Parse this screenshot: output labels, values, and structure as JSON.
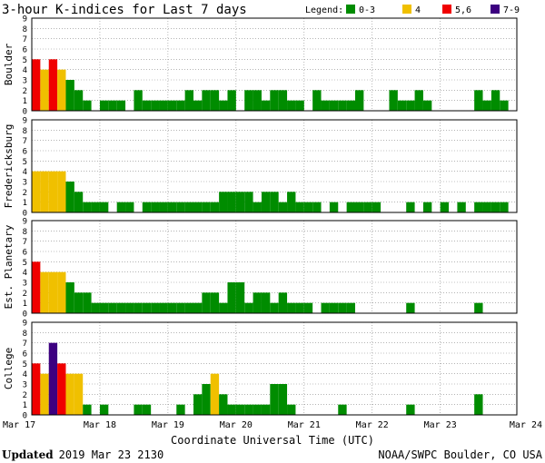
{
  "chart_data": {
    "type": "bar",
    "title": "3-hour K-indices for Last 7 days",
    "legend": {
      "label": "Legend:",
      "placement": "top-right",
      "entries": [
        {
          "label": "0-3",
          "color": "#008c00"
        },
        {
          "label": "4",
          "color": "#f0c000"
        },
        {
          "label": "5,6",
          "color": "#f00000"
        },
        {
          "label": "7-9",
          "color": "#3c0080"
        }
      ]
    },
    "xlabel": "Coordinate Universal Time (UTC)",
    "x_ticks": [
      "Mar 17",
      "Mar 18",
      "Mar 19",
      "Mar 20",
      "Mar 21",
      "Mar 22",
      "Mar 23",
      "Mar 24"
    ],
    "y_ticks": [
      "0",
      "1",
      "2",
      "3",
      "4",
      "5",
      "6",
      "7",
      "8",
      "9"
    ],
    "ylim": [
      0,
      9
    ],
    "bins_per_day": 8,
    "days": 7,
    "grid": true,
    "panels": [
      {
        "name": "Boulder",
        "values": [
          5,
          4,
          5,
          4,
          3,
          2,
          1,
          0,
          1,
          1,
          1,
          0,
          2,
          1,
          1,
          1,
          1,
          1,
          2,
          1,
          2,
          2,
          1,
          2,
          0,
          2,
          2,
          1,
          2,
          2,
          1,
          1,
          0,
          2,
          1,
          1,
          1,
          1,
          2,
          0,
          0,
          0,
          2,
          1,
          1,
          2,
          1,
          0,
          0,
          0,
          0,
          0,
          2,
          1,
          2,
          1,
          0
        ]
      },
      {
        "name": "Fredericksburg",
        "values": [
          4,
          4,
          4,
          4,
          3,
          2,
          1,
          1,
          1,
          0,
          1,
          1,
          0,
          1,
          1,
          1,
          1,
          1,
          1,
          1,
          1,
          1,
          2,
          2,
          2,
          2,
          1,
          2,
          2,
          1,
          2,
          1,
          1,
          1,
          0,
          1,
          0,
          1,
          1,
          1,
          1,
          0,
          0,
          0,
          1,
          0,
          1,
          0,
          1,
          0,
          1,
          0,
          1,
          1,
          1,
          1,
          0
        ]
      },
      {
        "name": "Est. Planetary",
        "values": [
          5,
          4,
          4,
          4,
          3,
          2,
          2,
          1,
          1,
          1,
          1,
          1,
          1,
          1,
          1,
          1,
          1,
          1,
          1,
          1,
          2,
          2,
          1,
          3,
          3,
          1,
          2,
          2,
          1,
          2,
          1,
          1,
          1,
          0,
          1,
          1,
          1,
          1,
          0,
          0,
          0,
          0,
          0,
          0,
          1,
          0,
          0,
          0,
          0,
          0,
          0,
          0,
          1,
          0,
          0,
          0,
          0
        ]
      },
      {
        "name": "College",
        "values": [
          5,
          4,
          7,
          5,
          4,
          4,
          1,
          0,
          1,
          0,
          0,
          0,
          1,
          1,
          0,
          0,
          0,
          1,
          0,
          2,
          3,
          4,
          2,
          1,
          1,
          1,
          1,
          1,
          3,
          3,
          1,
          0,
          0,
          0,
          0,
          0,
          1,
          0,
          0,
          0,
          0,
          0,
          0,
          0,
          1,
          0,
          0,
          0,
          0,
          0,
          0,
          0,
          2,
          0,
          0,
          0,
          0
        ]
      }
    ]
  },
  "footer": {
    "updated_label": "Updated",
    "updated_value": "2019 Mar 23 2130",
    "credit": "NOAA/SWPC Boulder, CO USA"
  }
}
